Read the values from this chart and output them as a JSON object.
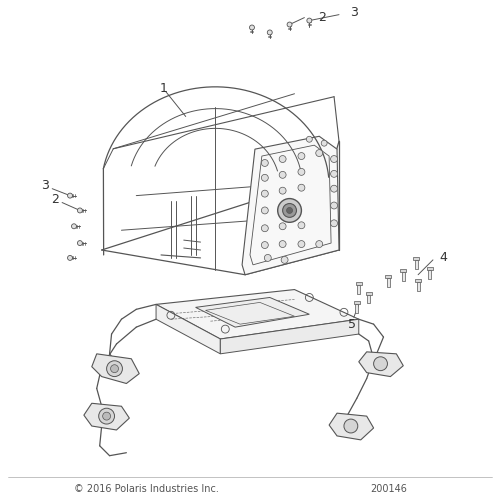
{
  "bg_color": "#ffffff",
  "line_color": "#555555",
  "text_color": "#333333",
  "footer_text": "© 2016 Polaris Industries Inc.",
  "part_number": "200146",
  "figsize": [
    5.0,
    5.0
  ],
  "dpi": 100
}
